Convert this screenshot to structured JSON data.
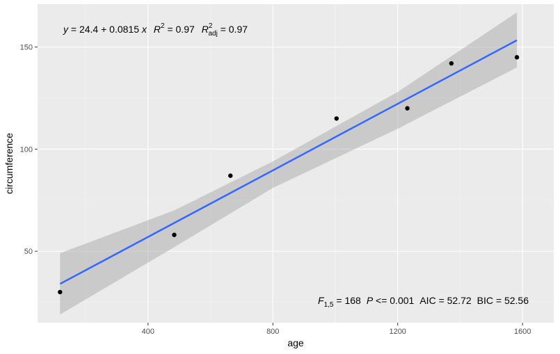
{
  "chart_data": {
    "type": "scatter",
    "xlabel": "age",
    "ylabel": "circumference",
    "xlim": [
      46,
      1700
    ],
    "ylim": [
      15,
      171
    ],
    "x_ticks": [
      400,
      800,
      1200,
      1600
    ],
    "x_tick_labels": [
      "400",
      "800",
      "1200",
      "1600"
    ],
    "y_ticks": [
      50,
      100,
      150
    ],
    "y_tick_labels": [
      "50",
      "100",
      "150"
    ],
    "grid": true,
    "points": [
      {
        "x": 118,
        "y": 30
      },
      {
        "x": 484,
        "y": 58
      },
      {
        "x": 664,
        "y": 87
      },
      {
        "x": 1004,
        "y": 115
      },
      {
        "x": 1231,
        "y": 120
      },
      {
        "x": 1372,
        "y": 142
      },
      {
        "x": 1582,
        "y": 145
      }
    ],
    "fit": {
      "intercept": 24.4,
      "slope": 0.0815,
      "x_range": [
        118,
        1582
      ],
      "band": [
        {
          "x": 118,
          "lo": 19,
          "hi": 49
        },
        {
          "x": 484,
          "lo": 52,
          "hi": 70
        },
        {
          "x": 800,
          "lo": 81,
          "hi": 94
        },
        {
          "x": 1200,
          "lo": 110,
          "hi": 128
        },
        {
          "x": 1582,
          "lo": 140,
          "hi": 167
        }
      ]
    },
    "colors": {
      "panel": "#ebebeb",
      "grid_major": "#ffffff",
      "line": "#3366ff",
      "band": "#999999",
      "point": "#000000"
    },
    "annotation_top": {
      "y": "y",
      "eq1": " = 24.4 + 0.0815 ",
      "x": "x",
      "R": "R",
      "sup2": "2",
      "eq2": " = 0.97",
      "Radj": "R",
      "sup2b": "2",
      "adj": "adj",
      "eq3": " = 0.97"
    },
    "annotation_bottom": {
      "F": "F",
      "fsub": "1,5",
      "fval": " = 168",
      "P": "P",
      "pval": " <= 0.001",
      "aic": "AIC = 52.72",
      "bic": "BIC = 52.56"
    }
  }
}
